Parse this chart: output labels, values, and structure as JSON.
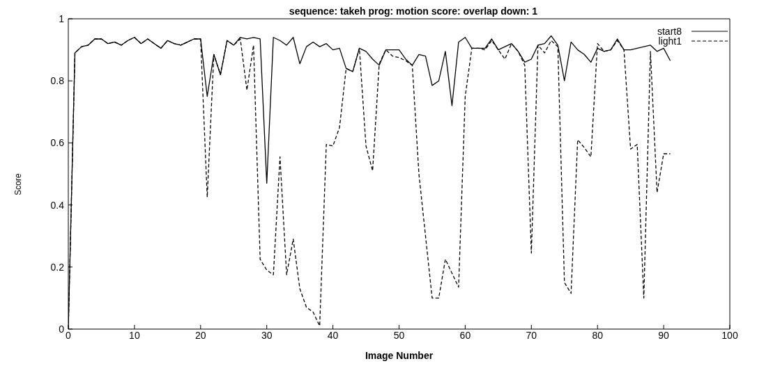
{
  "chart_data": {
    "type": "line",
    "title": "sequence: takeh prog: motion score: overlap down: 1",
    "xlabel": "Image Number",
    "ylabel": "Score",
    "x": [
      0,
      1,
      2,
      3,
      4,
      5,
      6,
      7,
      8,
      9,
      10,
      11,
      12,
      13,
      14,
      15,
      16,
      17,
      18,
      19,
      20,
      21,
      22,
      23,
      24,
      25,
      26,
      27,
      28,
      29,
      30,
      31,
      32,
      33,
      34,
      35,
      36,
      37,
      38,
      39,
      40,
      41,
      42,
      43,
      44,
      45,
      46,
      47,
      48,
      49,
      50,
      51,
      52,
      53,
      54,
      55,
      56,
      57,
      58,
      59,
      60,
      61,
      62,
      63,
      64,
      65,
      66,
      67,
      68,
      69,
      70,
      71,
      72,
      73,
      74,
      75,
      76,
      77,
      78,
      79,
      80,
      81,
      82,
      83,
      84,
      85,
      86,
      87,
      88,
      89,
      90,
      91
    ],
    "series": [
      {
        "name": "start8",
        "color": "#000000",
        "line_style": "solid",
        "values": [
          0,
          0.89,
          0.91,
          0.915,
          0.935,
          0.935,
          0.92,
          0.925,
          0.915,
          0.93,
          0.94,
          0.92,
          0.935,
          0.92,
          0.905,
          0.93,
          0.92,
          0.915,
          0.925,
          0.935,
          0.935,
          0.75,
          0.885,
          0.82,
          0.93,
          0.915,
          0.94,
          0.935,
          0.94,
          0.935,
          0.47,
          0.94,
          0.93,
          0.915,
          0.94,
          0.855,
          0.91,
          0.925,
          0.91,
          0.92,
          0.9,
          0.905,
          0.84,
          0.83,
          0.905,
          0.895,
          0.87,
          0.85,
          0.9,
          0.9,
          0.9,
          0.87,
          0.85,
          0.885,
          0.88,
          0.785,
          0.8,
          0.895,
          0.72,
          0.925,
          0.94,
          0.905,
          0.905,
          0.905,
          0.935,
          0.9,
          0.91,
          0.92,
          0.895,
          0.86,
          0.87,
          0.915,
          0.92,
          0.945,
          0.915,
          0.8,
          0.925,
          0.9,
          0.885,
          0.86,
          0.905,
          0.895,
          0.9,
          0.935,
          0.9,
          0.9,
          0.905,
          0.91,
          0.915,
          0.895,
          0.905,
          0.865
        ]
      },
      {
        "name": "light1",
        "color": "#000000",
        "line_style": "dashed",
        "values": [
          0,
          0.89,
          0.91,
          0.915,
          0.935,
          0.935,
          0.92,
          0.925,
          0.915,
          0.93,
          0.94,
          0.92,
          0.935,
          0.92,
          0.905,
          0.93,
          0.92,
          0.915,
          0.925,
          0.935,
          0.935,
          0.425,
          0.885,
          0.82,
          0.93,
          0.915,
          0.935,
          0.77,
          0.915,
          0.225,
          0.19,
          0.175,
          0.555,
          0.175,
          0.29,
          0.13,
          0.07,
          0.055,
          0.01,
          0.595,
          0.59,
          0.65,
          0.84,
          0.83,
          0.905,
          0.59,
          0.51,
          0.855,
          0.9,
          0.88,
          0.875,
          0.865,
          0.85,
          0.5,
          0.3,
          0.1,
          0.1,
          0.225,
          0.18,
          0.135,
          0.75,
          0.905,
          0.905,
          0.9,
          0.93,
          0.9,
          0.87,
          0.92,
          0.895,
          0.85,
          0.245,
          0.915,
          0.89,
          0.93,
          0.91,
          0.15,
          0.115,
          0.61,
          0.585,
          0.555,
          0.92,
          0.895,
          0.9,
          0.93,
          0.9,
          0.58,
          0.595,
          0.1,
          0.895,
          0.44,
          0.565,
          0.565
        ]
      }
    ],
    "xlim": [
      0,
      100
    ],
    "xticks": [
      0,
      10,
      20,
      30,
      40,
      50,
      60,
      70,
      80,
      90,
      100
    ],
    "ylim": [
      0,
      1
    ],
    "yticks": [
      0,
      0.2,
      0.4,
      0.6,
      0.8,
      1
    ],
    "legend": "top right",
    "marker": "none",
    "grid": false
  }
}
